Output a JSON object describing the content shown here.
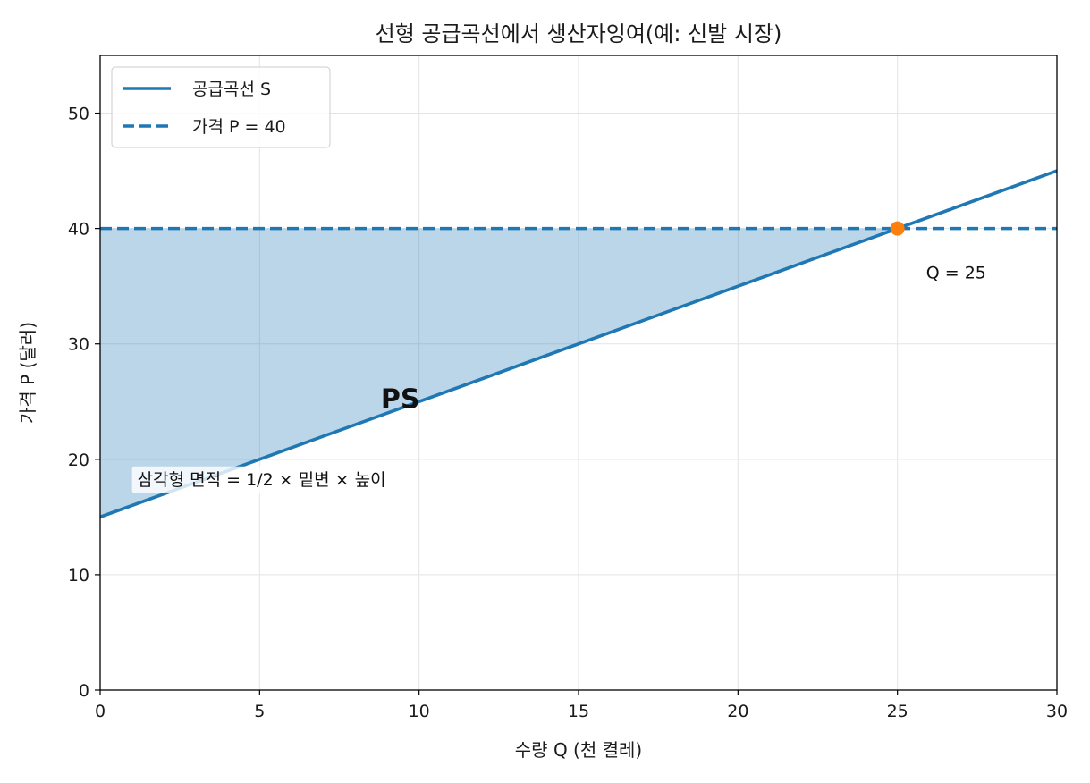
{
  "chart_data": {
    "type": "line",
    "title": "선형 공급곡선에서 생산자잉여(예: 신발 시장)",
    "xlabel": "수량 Q (천 켤레)",
    "ylabel": "가격 P (달러)",
    "xlim": [
      0,
      30
    ],
    "ylim": [
      0,
      55
    ],
    "xticks": [
      0,
      5,
      10,
      15,
      20,
      25,
      30
    ],
    "yticks": [
      0,
      10,
      20,
      30,
      40,
      50
    ],
    "grid": true,
    "legend_position": "top-left",
    "series": [
      {
        "name": "공급곡선 S",
        "style": "solid",
        "color": "#1f77b4",
        "x": [
          0,
          30
        ],
        "y": [
          15,
          45
        ]
      },
      {
        "name": "가격 P = 40",
        "style": "dashed",
        "color": "#1f77b4",
        "x": [
          0,
          30
        ],
        "y": [
          40,
          40
        ]
      }
    ],
    "shaded_region": {
      "label": "PS",
      "color": "#1f77b4",
      "x": [
        0,
        25,
        0
      ],
      "y": [
        15,
        40,
        40
      ]
    },
    "equilibrium_point": {
      "x": 25,
      "y": 40,
      "color": "#ff7f0e"
    },
    "annotations": {
      "quantity_label": {
        "text": "Q = 25",
        "x": 25.9,
        "y": 36.2
      },
      "area_note": {
        "text": "삼각형 면적 = 1/2 × 밑변 × 높이",
        "x": 1,
        "y": 18.3
      },
      "region_label_pos": {
        "x": 8.8,
        "y": 25.3
      }
    }
  }
}
